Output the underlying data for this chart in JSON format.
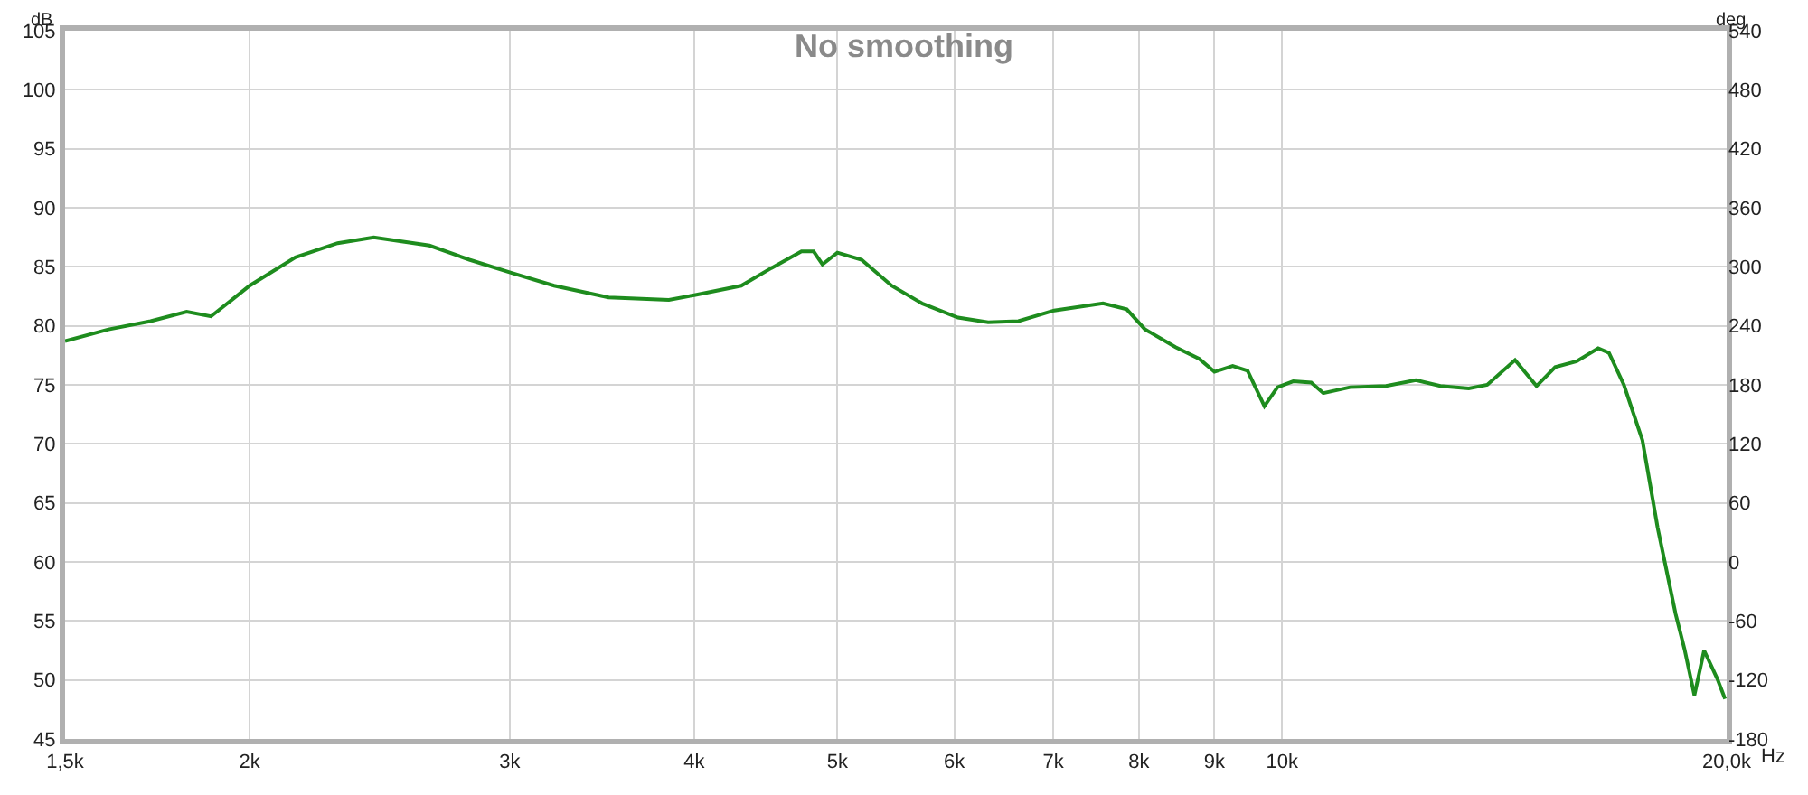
{
  "chart_data": {
    "type": "line",
    "title": "No smoothing",
    "xlabel": "Hz",
    "ylabel": "dB",
    "y2label": "deg",
    "x": [
      1500,
      1605,
      1714,
      1813,
      1883,
      2000,
      2148,
      2294,
      2427,
      2647,
      2817,
      3006,
      3215,
      3500,
      3845,
      4000,
      4304,
      4512,
      4728,
      4818,
      4885,
      5000,
      5192,
      5441,
      5705,
      6034,
      6325,
      6630,
      7010,
      7564,
      7850,
      8077,
      8470,
      8790,
      9000,
      9260,
      9477,
      9729,
      9930,
      10177,
      10466,
      10666,
      11120,
      11760,
      12320,
      12800,
      13380,
      13770,
      14380,
      14870,
      15310,
      15830,
      16370,
      16650,
      17040,
      17540,
      17960,
      18470,
      18730,
      19020,
      19310,
      19710,
      19950
    ],
    "series": [
      {
        "color": "#1e8c1e",
        "values": [
          78.7,
          79.7,
          80.4,
          81.2,
          80.8,
          83.4,
          85.8,
          87.0,
          87.5,
          86.8,
          85.6,
          84.5,
          83.4,
          82.4,
          82.2,
          82.6,
          83.4,
          84.9,
          86.3,
          86.3,
          85.2,
          86.2,
          85.6,
          83.4,
          81.9,
          80.7,
          80.3,
          80.4,
          81.3,
          81.9,
          81.4,
          79.7,
          78.2,
          77.2,
          76.1,
          76.6,
          76.2,
          73.2,
          74.8,
          75.3,
          75.2,
          74.3,
          74.8,
          74.9,
          75.4,
          74.9,
          74.7,
          75.0,
          77.1,
          74.9,
          76.5,
          77.0,
          78.1,
          77.7,
          75.0,
          70.3,
          62.9,
          55.6,
          52.6,
          48.7,
          52.5,
          50.1,
          48.4
        ]
      }
    ],
    "xlim": [
      1500,
      20000
    ],
    "xticks": [
      {
        "value": 1500,
        "label": "1,5k"
      },
      {
        "value": 2000,
        "label": "2k"
      },
      {
        "value": 3000,
        "label": "3k"
      },
      {
        "value": 4000,
        "label": "4k"
      },
      {
        "value": 5000,
        "label": "5k"
      },
      {
        "value": 6000,
        "label": "6k"
      },
      {
        "value": 7000,
        "label": "7k"
      },
      {
        "value": 8000,
        "label": "8k"
      },
      {
        "value": 9000,
        "label": "9k"
      },
      {
        "value": 10000,
        "label": "10k"
      },
      {
        "value": 20000,
        "label": "20,0k"
      }
    ],
    "ylim": [
      45,
      105
    ],
    "yticks": [
      45,
      50,
      55,
      60,
      65,
      70,
      75,
      80,
      85,
      90,
      95,
      100,
      105
    ],
    "y2lim": [
      -180,
      540
    ],
    "y2ticks": [
      -180,
      -120,
      -60,
      0,
      60,
      120,
      180,
      240,
      300,
      360,
      420,
      480,
      540
    ],
    "log": "x",
    "grid": true
  }
}
